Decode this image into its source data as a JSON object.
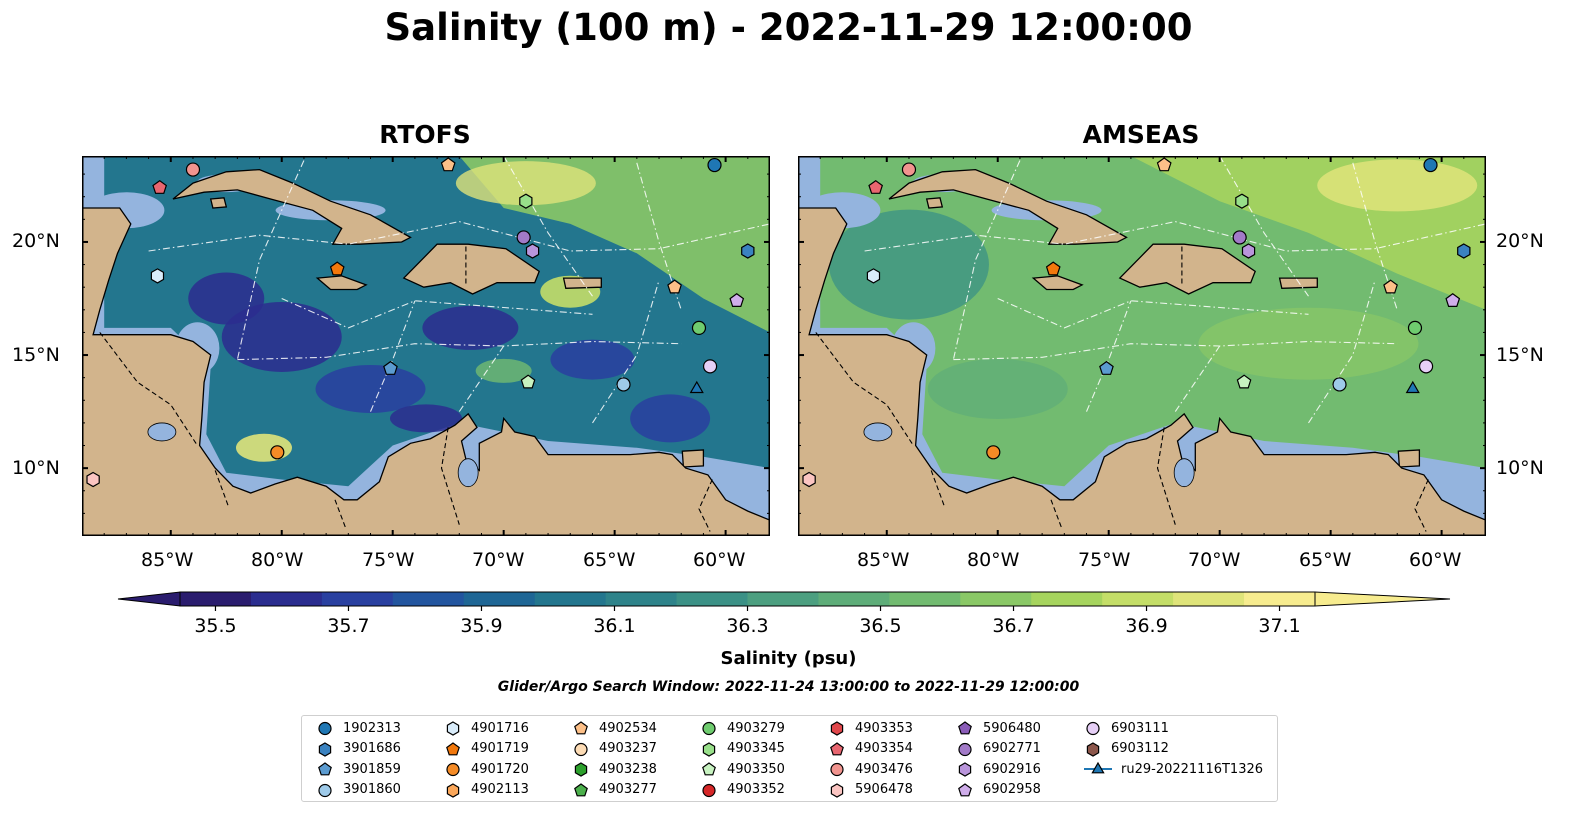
{
  "title": "Salinity (100 m) - 2022-11-29 12:00:00",
  "panels": [
    {
      "title": "RTOFS",
      "model": "rtofs"
    },
    {
      "title": "AMSEAS",
      "model": "amseas"
    }
  ],
  "lon_labels": [
    "85°W",
    "80°W",
    "75°W",
    "70°W",
    "65°W",
    "60°W"
  ],
  "lat_labels": [
    "20°N",
    "15°N",
    "10°N"
  ],
  "colorbar": {
    "label": "Salinity (psu)",
    "ticks": [
      "35.5",
      "35.7",
      "35.9",
      "36.1",
      "36.3",
      "36.5",
      "36.7",
      "36.9",
      "37.1"
    ],
    "range": [
      35.5,
      37.1
    ],
    "extend": "both",
    "colors": [
      "#2a1c6e",
      "#2b2d8f",
      "#2940a0",
      "#22559f",
      "#1e6695",
      "#23768e",
      "#2e838a",
      "#3b9186",
      "#4c9f80",
      "#5ead79",
      "#72bb70",
      "#8ac866",
      "#a6d45e",
      "#c4de68",
      "#dfe47a",
      "#f7ec8f"
    ]
  },
  "search_window": "Glider/Argo Search Window: 2022-11-24 13:00:00 to 2022-11-29 12:00:00",
  "legend": {
    "items": [
      {
        "label": "1902313",
        "marker": "circle",
        "color": "#1f77b4"
      },
      {
        "label": "3901686",
        "marker": "hexagon",
        "color": "#3a82c0"
      },
      {
        "label": "3901859",
        "marker": "pentagon",
        "color": "#5b9bd0"
      },
      {
        "label": "3901860",
        "marker": "circle",
        "color": "#9ecae9"
      },
      {
        "label": "4901716",
        "marker": "hexagon",
        "color": "#d9ecfa"
      },
      {
        "label": "4901719",
        "marker": "pentagon",
        "color": "#f2780c"
      },
      {
        "label": "4901720",
        "marker": "circle",
        "color": "#f58b26"
      },
      {
        "label": "4902113",
        "marker": "hexagon",
        "color": "#fba75a"
      },
      {
        "label": "4902534",
        "marker": "pentagon",
        "color": "#fdc088"
      },
      {
        "label": "4903237",
        "marker": "circle",
        "color": "#fddcb5"
      },
      {
        "label": "4903238",
        "marker": "hexagon",
        "color": "#2ca02c"
      },
      {
        "label": "4903277",
        "marker": "pentagon",
        "color": "#4cb04c"
      },
      {
        "label": "4903279",
        "marker": "circle",
        "color": "#6fcc6f"
      },
      {
        "label": "4903345",
        "marker": "hexagon",
        "color": "#98df8a"
      },
      {
        "label": "4903350",
        "marker": "pentagon",
        "color": "#c7f2c0"
      },
      {
        "label": "4903352",
        "marker": "circle",
        "color": "#d62728"
      },
      {
        "label": "4903353",
        "marker": "hexagon",
        "color": "#e0474b"
      },
      {
        "label": "4903354",
        "marker": "pentagon",
        "color": "#e86670"
      },
      {
        "label": "4903476",
        "marker": "circle",
        "color": "#f1948f"
      },
      {
        "label": "5906478",
        "marker": "hexagon",
        "color": "#fbc5c2"
      },
      {
        "label": "5906480",
        "marker": "pentagon",
        "color": "#8a5cb8"
      },
      {
        "label": "6902771",
        "marker": "circle",
        "color": "#a27ac8"
      },
      {
        "label": "6902916",
        "marker": "hexagon",
        "color": "#b995db"
      },
      {
        "label": "6902958",
        "marker": "pentagon",
        "color": "#cfadea"
      },
      {
        "label": "6903111",
        "marker": "circle",
        "color": "#e6cff6"
      },
      {
        "label": "6903112",
        "marker": "hexagon",
        "color": "#8c564b"
      },
      {
        "label": "ru29-20221116T1326",
        "marker": "triangle-line",
        "color": "#1f77b4"
      }
    ]
  },
  "floats": [
    {
      "id": "4903476",
      "lon": -84,
      "lat": 23.2
    },
    {
      "id": "4903354",
      "lon": -85.5,
      "lat": 22.4
    },
    {
      "id": "4902534",
      "lon": -72.5,
      "lat": 23.4
    },
    {
      "id": "1902313",
      "lon": -60.5,
      "lat": 23.4
    },
    {
      "id": "4903345",
      "lon": -69,
      "lat": 21.8
    },
    {
      "id": "6902771",
      "lon": -69.1,
      "lat": 20.2
    },
    {
      "id": "6902916",
      "lon": -68.7,
      "lat": 19.6
    },
    {
      "id": "3901686",
      "lon": -59,
      "lat": 19.6
    },
    {
      "id": "4901716",
      "lon": -85.6,
      "lat": 18.5
    },
    {
      "id": "4901719",
      "lon": -77.5,
      "lat": 18.8
    },
    {
      "id": "4902534",
      "lon": -62.3,
      "lat": 18.0
    },
    {
      "id": "6902958",
      "lon": -59.5,
      "lat": 17.4
    },
    {
      "id": "4903279",
      "lon": -61.2,
      "lat": 16.2
    },
    {
      "id": "3901859",
      "lon": -75.1,
      "lat": 14.4
    },
    {
      "id": "4903350",
      "lon": -68.9,
      "lat": 13.8
    },
    {
      "id": "3901860",
      "lon": -64.6,
      "lat": 13.7
    },
    {
      "id": "6903111",
      "lon": -60.7,
      "lat": 14.5
    },
    {
      "id": "ru29-20221116T1326",
      "lon": -61.3,
      "lat": 13.5
    },
    {
      "id": "4901720",
      "lon": -80.2,
      "lat": 10.7
    },
    {
      "id": "5906478",
      "lon": -88.5,
      "lat": 9.5
    }
  ]
}
